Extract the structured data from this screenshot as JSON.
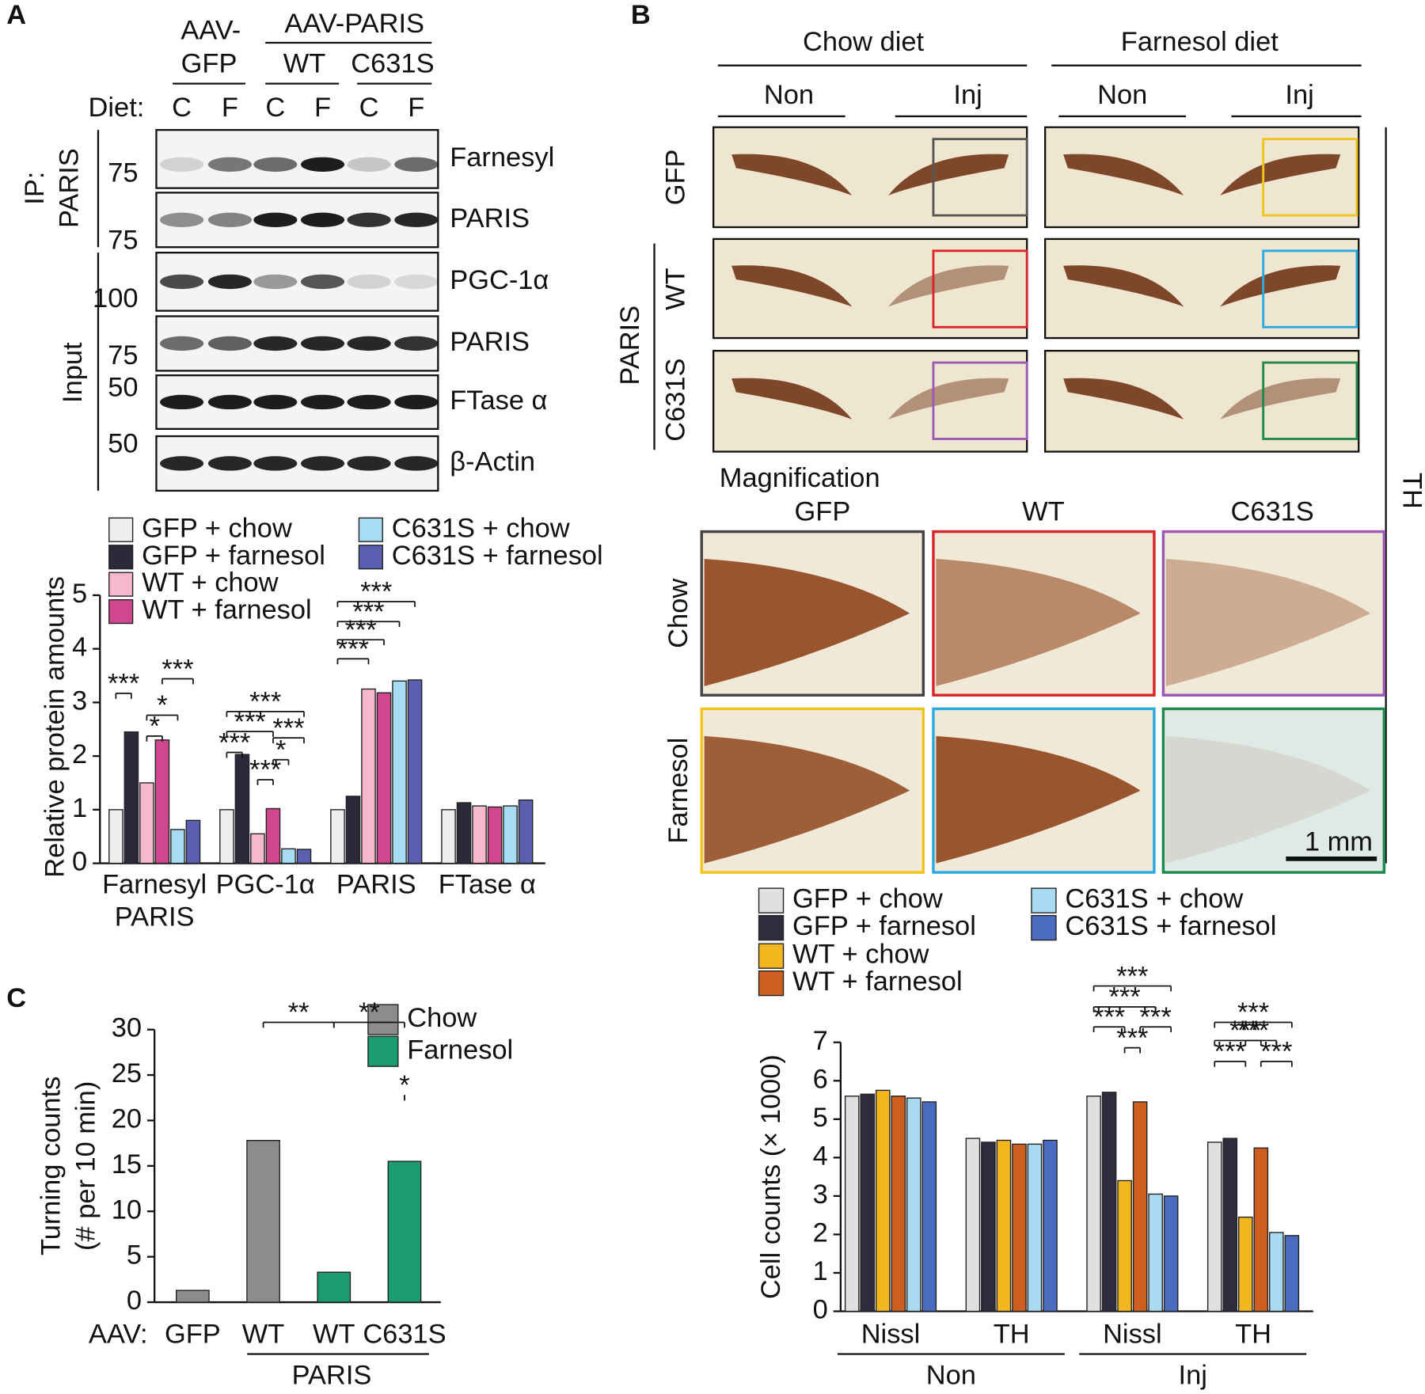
{
  "panels": [
    "A",
    "B",
    "C"
  ],
  "blot": {
    "gfp_header": [
      "AAV-",
      "GFP"
    ],
    "paris_header": "AAV-PARIS",
    "wt": "WT",
    "c631s": "C631S",
    "diet": "Diet:",
    "lanes": [
      "C",
      "F",
      "C",
      "F",
      "C",
      "F"
    ],
    "ip_label": [
      "IP:",
      "PARIS"
    ],
    "input_label": "Input",
    "rows": [
      "Farnesyl",
      "PARIS",
      "PGC-1α",
      "PARIS",
      "FTase α",
      "β-Actin"
    ],
    "markers": [
      "75",
      "75",
      "100",
      "75",
      "50",
      "50"
    ]
  },
  "histology": {
    "diet_headers": [
      "Chow diet",
      "Farnesol diet"
    ],
    "inj_headers": [
      "Non",
      "Inj",
      "Non",
      "Inj"
    ],
    "rows": [
      "GFP",
      "WT",
      "C631S"
    ],
    "paris": "PARIS",
    "th": "TH",
    "magnification": "Magnification",
    "mag_cols": [
      "GFP",
      "WT",
      "C631S"
    ],
    "mag_rows": [
      "Chow",
      "Farnesol"
    ],
    "scale": "1 mm"
  },
  "chart_data": [
    {
      "type": "bar",
      "ylabel": "Relative protein amounts",
      "categories": [
        "Farnesyl PARIS",
        "PGC-1α",
        "PARIS",
        "FTase α"
      ],
      "series": [
        {
          "name": "GFP + chow",
          "color": "#eeeeee",
          "values": [
            1.0,
            1.0,
            1.0,
            1.0
          ]
        },
        {
          "name": "GFP + farnesol",
          "color": "#2b2a3a",
          "values": [
            2.45,
            2.03,
            1.25,
            1.13
          ]
        },
        {
          "name": "WT + chow",
          "color": "#f6b8cb",
          "values": [
            1.5,
            0.55,
            3.25,
            1.07
          ]
        },
        {
          "name": "WT + farnesol",
          "color": "#d0478f",
          "values": [
            2.3,
            1.02,
            3.18,
            1.05
          ]
        },
        {
          "name": "C631S + chow",
          "color": "#a8dcf2",
          "values": [
            0.63,
            0.27,
            3.4,
            1.07
          ]
        },
        {
          "name": "C631S + farnesol",
          "color": "#5b5fb0",
          "values": [
            0.8,
            0.26,
            3.42,
            1.18
          ]
        }
      ],
      "ylim": [
        0,
        5
      ],
      "yticks": [
        0,
        1,
        2,
        3,
        4,
        5
      ],
      "annotations": [
        "***",
        "***",
        "*",
        "*",
        "***",
        "***",
        "***",
        "***",
        "*",
        "***",
        "***",
        "***",
        "***",
        "***"
      ]
    },
    {
      "type": "bar",
      "ylabel": "Cell counts (× 1000)",
      "categories": [
        "Nissl",
        "TH",
        "Nissl",
        "TH"
      ],
      "group_labels": [
        "Non",
        "Inj"
      ],
      "series": [
        {
          "name": "GFP + chow",
          "color": "#e0e0e0",
          "values": [
            5.6,
            4.5,
            5.6,
            4.4
          ]
        },
        {
          "name": "GFP + farnesol",
          "color": "#2e2d3d",
          "values": [
            5.65,
            4.4,
            5.7,
            4.5
          ]
        },
        {
          "name": "WT + chow",
          "color": "#f2b71f",
          "values": [
            5.75,
            4.45,
            3.4,
            2.45
          ]
        },
        {
          "name": "WT + farnesol",
          "color": "#cf5f20",
          "values": [
            5.6,
            4.35,
            5.45,
            4.25
          ]
        },
        {
          "name": "C631S + chow",
          "color": "#a8daf2",
          "values": [
            5.55,
            4.35,
            3.05,
            2.05
          ]
        },
        {
          "name": "C631S + farnesol",
          "color": "#4a6cc0",
          "values": [
            5.45,
            4.45,
            3.0,
            1.97
          ]
        }
      ],
      "ylim": [
        0,
        7
      ],
      "yticks": [
        0,
        1,
        2,
        3,
        4,
        5,
        6,
        7
      ],
      "annotations": [
        "***",
        "***",
        "***",
        "***",
        "***",
        "***",
        "***",
        "***",
        "***",
        "***"
      ]
    },
    {
      "type": "bar",
      "ylabel": [
        "Turning counts",
        "(# per 10 min)"
      ],
      "x_prefix": "AAV:",
      "group_label": "PARIS",
      "categories": [
        "GFP",
        "WT",
        "WT",
        "C631S"
      ],
      "series": [
        {
          "name": "Chow",
          "color": "#8c8c8c",
          "values": [
            1.3,
            17.8,
            null,
            null
          ]
        },
        {
          "name": "Farnesol",
          "color": "#1a9c6e",
          "values": [
            null,
            null,
            3.3,
            15.5
          ]
        }
      ],
      "ylim": [
        0,
        30
      ],
      "yticks": [
        0,
        5,
        10,
        15,
        20,
        25,
        30
      ],
      "annotations": [
        "**",
        "**",
        "*"
      ]
    }
  ]
}
